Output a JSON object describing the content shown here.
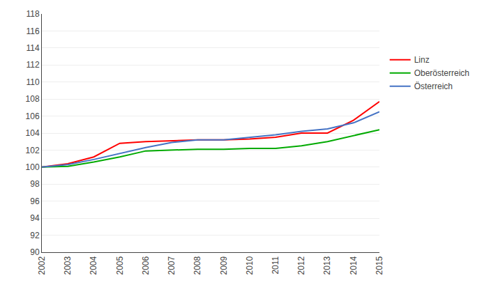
{
  "chart_data": {
    "type": "line",
    "x": [
      2002,
      2003,
      2004,
      2005,
      2006,
      2007,
      2008,
      2009,
      2010,
      2011,
      2012,
      2013,
      2014,
      2015
    ],
    "series": [
      {
        "name": "Linz",
        "color": "#FF0000",
        "values": [
          100.0,
          100.4,
          101.2,
          102.8,
          103.0,
          103.1,
          103.2,
          103.2,
          103.3,
          103.5,
          104.0,
          104.0,
          105.5,
          107.7
        ]
      },
      {
        "name": "Oberösterreich",
        "color": "#00AA00",
        "values": [
          100.0,
          100.1,
          100.6,
          101.2,
          101.9,
          102.0,
          102.1,
          102.1,
          102.2,
          102.2,
          102.5,
          103.0,
          103.7,
          104.4
        ]
      },
      {
        "name": "Österreich",
        "color": "#4472C4",
        "values": [
          100.0,
          100.3,
          100.9,
          101.6,
          102.3,
          102.9,
          103.2,
          103.2,
          103.5,
          103.8,
          104.2,
          104.5,
          105.2,
          106.5
        ]
      }
    ],
    "xlim": [
      2002,
      2015
    ],
    "xticks": [
      2002,
      2003,
      2004,
      2005,
      2006,
      2007,
      2008,
      2009,
      2010,
      2011,
      2012,
      2013,
      2014,
      2015
    ],
    "ylim": [
      90,
      118
    ],
    "yticks": [
      90,
      92,
      94,
      96,
      98,
      100,
      102,
      104,
      106,
      108,
      110,
      112,
      114,
      116,
      118
    ],
    "grid": "y",
    "legend": "right"
  }
}
